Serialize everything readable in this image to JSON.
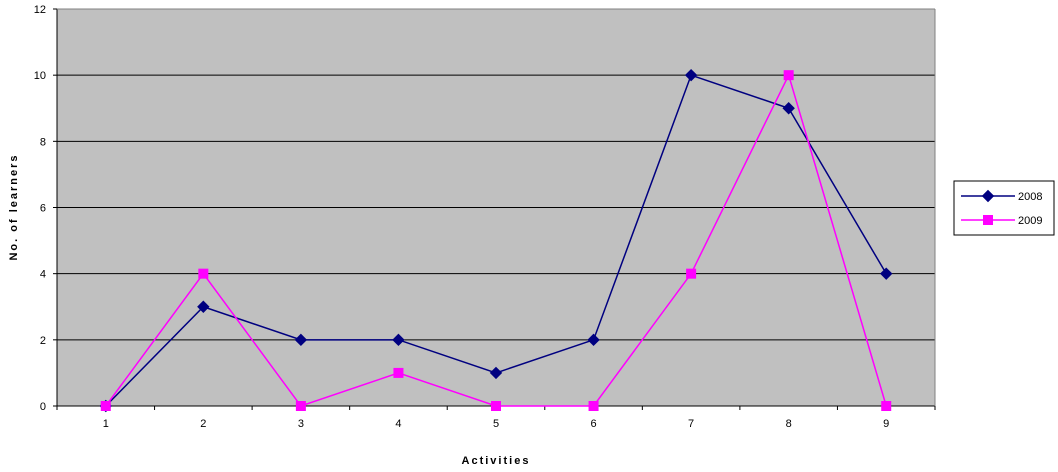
{
  "chart_data": {
    "type": "line",
    "x": [
      1,
      2,
      3,
      4,
      5,
      6,
      7,
      8,
      9
    ],
    "xlabel": "Activities",
    "ylabel": "No. of learners",
    "ylim": [
      0,
      12
    ],
    "yticks": [
      0,
      2,
      4,
      6,
      8,
      10,
      12
    ],
    "grid": "horizontal",
    "legend_position": "right",
    "plot_background": "#c0c0c0",
    "series": [
      {
        "name": "2008",
        "color": "#000080",
        "marker": "diamond",
        "values": [
          0,
          3,
          2,
          2,
          1,
          2,
          10,
          9,
          4
        ]
      },
      {
        "name": "2009",
        "color": "#ff00ff",
        "marker": "square",
        "values": [
          0,
          4,
          0,
          1,
          0,
          0,
          4,
          10,
          0
        ]
      }
    ]
  }
}
